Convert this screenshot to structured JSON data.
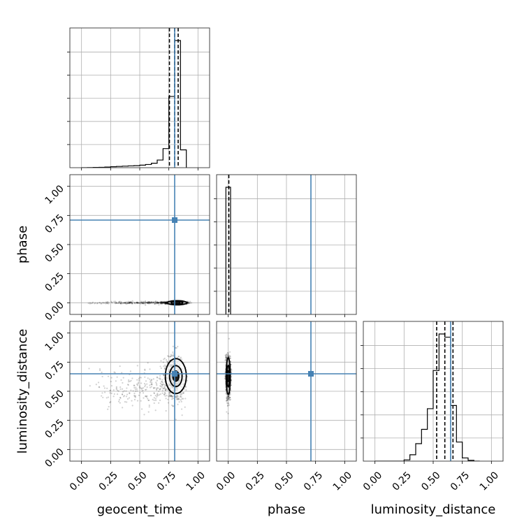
{
  "chart_data": {
    "type": "corner",
    "parameters": [
      "geocent_time",
      "phase",
      "luminosity_distance"
    ],
    "xlabels": [
      "geocent_time",
      "phase",
      "luminosity_distance"
    ],
    "ylabels": [
      "",
      "phase",
      "luminosity_distance"
    ],
    "tick_values": [
      0.0,
      0.25,
      0.5,
      0.75,
      1.0
    ],
    "tick_labels": [
      "0.00",
      "0.25",
      "0.50",
      "0.75",
      "1.00"
    ],
    "axis_range": [
      -0.1,
      1.1
    ],
    "grid": true,
    "truths": [
      0.8,
      0.71,
      0.65
    ],
    "truth_color": "#4682b4",
    "hist_color": "#000000",
    "quantiles": [
      [
        0.755,
        0.8,
        0.83
      ],
      [
        0.005
      ],
      [
        0.53,
        0.6,
        0.67
      ]
    ],
    "histograms": [
      {
        "parameter": "geocent_time",
        "bin_edges": [
          0.0,
          0.05,
          0.1,
          0.15,
          0.2,
          0.25,
          0.3,
          0.35,
          0.4,
          0.45,
          0.5,
          0.55,
          0.6,
          0.65,
          0.7,
          0.75,
          0.8,
          0.85,
          0.9
        ],
        "counts": [
          0,
          1,
          2,
          3,
          5,
          8,
          10,
          12,
          14,
          16,
          20,
          25,
          35,
          60,
          150,
          560,
          1000,
          140
        ]
      },
      {
        "parameter": "phase",
        "bin_edges": [
          -0.02,
          0.0,
          0.02
        ],
        "counts": [
          1000,
          1000
        ]
      },
      {
        "parameter": "luminosity_distance",
        "bin_edges": [
          0.0,
          0.25,
          0.3,
          0.35,
          0.4,
          0.45,
          0.5,
          0.55,
          0.6,
          0.65,
          0.7,
          0.75,
          0.8,
          0.85,
          0.9
        ],
        "counts": [
          0,
          8,
          40,
          110,
          200,
          330,
          570,
          800,
          780,
          350,
          120,
          20,
          5,
          0
        ]
      }
    ],
    "scatter_2d": [
      {
        "x": "geocent_time",
        "y": "phase",
        "x_range": [
          0.05,
          0.92
        ],
        "y_center": 0.0,
        "y_spread": 0.005,
        "peak": [
          0.82,
          0.0
        ]
      },
      {
        "x": "geocent_time",
        "y": "luminosity_distance",
        "x_range": [
          0.05,
          0.9
        ],
        "y_center": 0.55,
        "peak": [
          0.81,
          0.63
        ]
      },
      {
        "x": "phase",
        "y": "luminosity_distance",
        "x_center": 0.0,
        "y_range": [
          0.3,
          0.85
        ],
        "peak": [
          0.0,
          0.63
        ]
      }
    ]
  }
}
